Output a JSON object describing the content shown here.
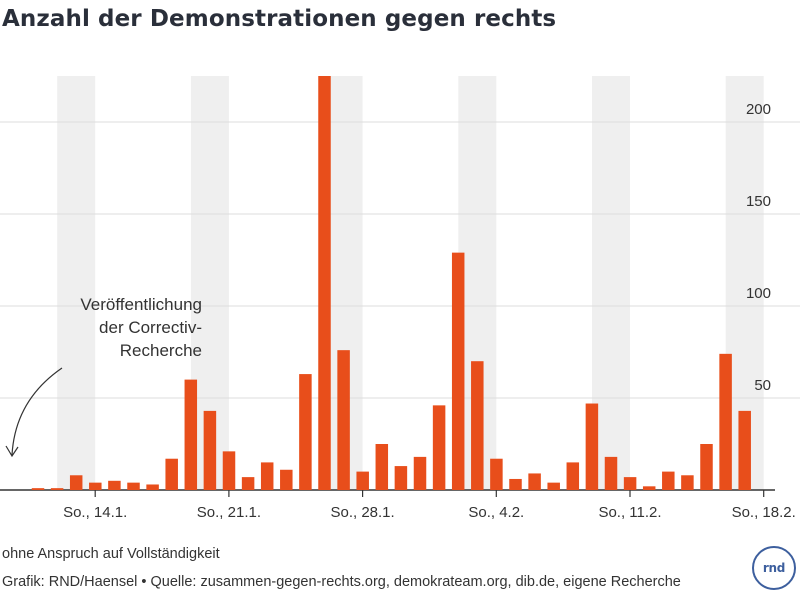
{
  "chart_data": {
    "type": "bar",
    "title": "Anzahl der Demonstrationen gegen rechts",
    "annotation": [
      "Veröffentlichung",
      "der Correctiv-",
      "Recherche"
    ],
    "ylim": [
      0,
      225
    ],
    "y_ticks": [
      50,
      100,
      150,
      200
    ],
    "x_tick_labels": [
      "So., 14.1.",
      "So., 21.1.",
      "So., 28.1.",
      "So., 4.2.",
      "So., 11.2.",
      "So., 18.2."
    ],
    "sunday_indices": [
      2,
      9,
      16,
      23,
      30,
      37
    ],
    "values": [
      1,
      1,
      8,
      4,
      5,
      4,
      3,
      17,
      60,
      43,
      21,
      7,
      15,
      11,
      63,
      225,
      76,
      10,
      25,
      13,
      18,
      46,
      129,
      70,
      17,
      6,
      9,
      4,
      15,
      47,
      18,
      7,
      2,
      10,
      8,
      25,
      74,
      43
    ],
    "bar_color": "#e84e1b",
    "sunday_band_color": "#efefef",
    "grid": true
  },
  "footnote": "ohne Anspruch auf Vollständigkeit",
  "credit": "Grafik: RND/Haensel • Quelle: zusammen-gegen-rechts.org, demokrateam.org, dib.de, eigene Recherche",
  "logo_text": "rnd"
}
